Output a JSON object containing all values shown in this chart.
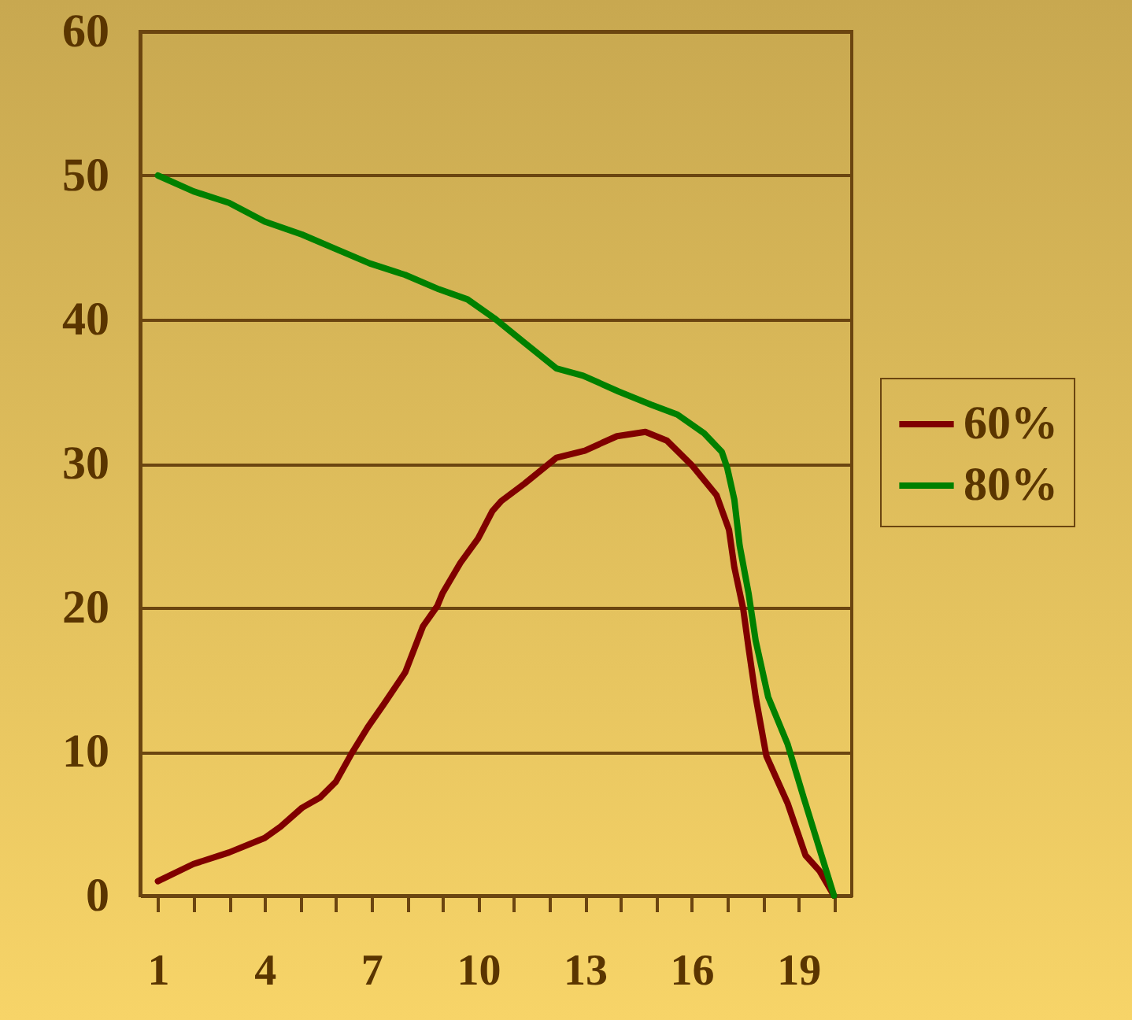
{
  "chart_data": {
    "type": "line",
    "xlim": [
      0.5,
      20.5
    ],
    "xticks": [
      1,
      {
        "value": 2,
        "label": null
      },
      {
        "value": 3,
        "label": null
      },
      4,
      {
        "value": 5,
        "label": null
      },
      {
        "value": 6,
        "label": null
      },
      7,
      {
        "value": 8,
        "label": null
      },
      {
        "value": 9,
        "label": null
      },
      10,
      {
        "value": 11,
        "label": null
      },
      {
        "value": 12,
        "label": null
      },
      13,
      {
        "value": 14,
        "label": null
      },
      {
        "value": 15,
        "label": null
      },
      16,
      {
        "value": 17,
        "label": null
      },
      {
        "value": 18,
        "label": null
      },
      19,
      {
        "value": 20,
        "label": null
      }
    ],
    "ylim": [
      0,
      60
    ],
    "yticks": [
      0,
      10,
      20,
      30,
      40,
      50,
      60
    ],
    "grid": "y",
    "legend": "right",
    "line_style": "solid",
    "series": [
      {
        "name": "60%",
        "color": "#800000",
        "x": [
          1,
          2,
          3,
          4,
          4.45,
          5.05,
          5.55,
          6,
          6.45,
          6.9,
          7.35,
          7.95,
          8.45,
          8.85,
          9,
          9.5,
          10,
          10.4,
          10.65,
          11.3,
          12.2,
          13,
          13.9,
          14.7,
          15.3,
          16,
          16.7,
          17.05,
          17.2,
          17.45,
          17.6,
          17.8,
          18.1,
          18.7,
          19.2,
          19.6,
          20
        ],
        "values": [
          1,
          2.2,
          3,
          4,
          4.8,
          6.1,
          6.8,
          7.9,
          9.9,
          11.7,
          13.3,
          15.5,
          18.7,
          20.1,
          21,
          23.1,
          24.8,
          26.7,
          27.4,
          28.6,
          30.4,
          30.9,
          31.9,
          32.2,
          31.6,
          29.9,
          27.8,
          25.4,
          22.8,
          19.9,
          17.2,
          13.8,
          9.7,
          6.4,
          2.8,
          1.7,
          0
        ]
      },
      {
        "name": "80%",
        "color": "#008000",
        "x": [
          1,
          2,
          3,
          4,
          5.05,
          6,
          6.95,
          7.95,
          8.9,
          9.7,
          10.45,
          11.3,
          12.2,
          12.95,
          13.95,
          14.85,
          15.6,
          16.35,
          16.85,
          17,
          17.2,
          17.35,
          17.6,
          17.8,
          18.15,
          18.7,
          19.15,
          20
        ],
        "values": [
          50,
          48.9,
          48.1,
          46.8,
          45.9,
          44.9,
          43.9,
          43.1,
          42.1,
          41.4,
          40.1,
          38.4,
          36.6,
          36.1,
          35,
          34.1,
          33.4,
          32.1,
          30.8,
          29.7,
          27.5,
          24.3,
          21,
          17.7,
          13.8,
          10.5,
          6.8,
          0
        ]
      }
    ]
  }
}
